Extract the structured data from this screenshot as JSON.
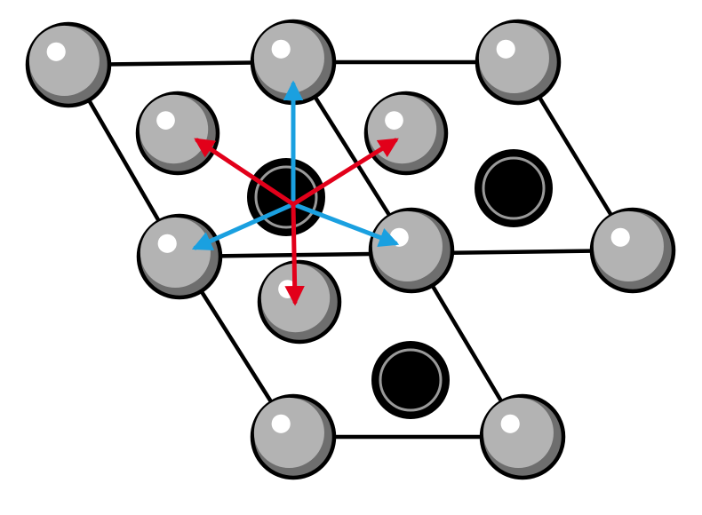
{
  "diagram": {
    "description_type": "lattice",
    "colors": {
      "background": "#ffffff",
      "edge": "#000000",
      "atom_fill": "#b3b3b3",
      "atom_shadow": "#6e6e6e",
      "atom_highlight": "#ffffff",
      "hole_fill": "#000000",
      "hole_ring": "#9a9a9a",
      "arrow_blue": "#1aa0e0",
      "arrow_red": "#e2001a"
    },
    "atom_roles": {
      "corner": "lattice-site",
      "inner": "interstitial-site",
      "hole": "vacancy-site"
    },
    "arrow_sets": [
      "blue",
      "red"
    ]
  }
}
